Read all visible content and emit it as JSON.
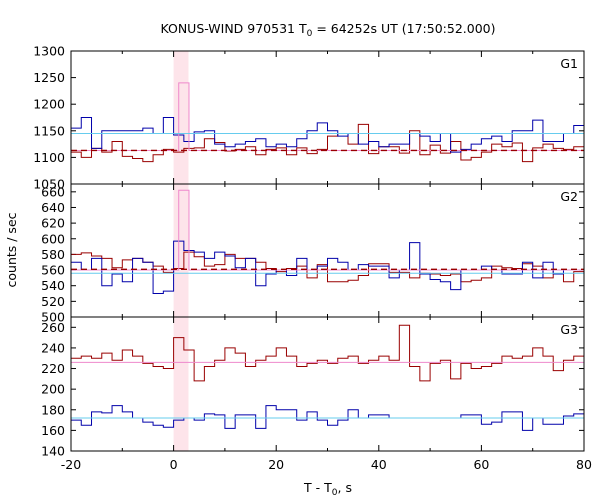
{
  "chart_data": {
    "type": "line",
    "title": {
      "main": "KONUS-WIND 970531 T",
      "sub": "0",
      "rest": " = 64252s UT (17:50:52.000)"
    },
    "xlabel": {
      "main": "T - T",
      "sub": "0",
      "rest": ", s"
    },
    "ylabel": "counts / sec",
    "xlim": [
      -20,
      80
    ],
    "xticks": [
      "-20",
      "0",
      "20",
      "40",
      "60",
      "80"
    ],
    "highlight": {
      "x0": 0,
      "x1": 2.9,
      "color": "#fde4ea"
    },
    "colors": {
      "red": "#990000",
      "blue": "#0000aa",
      "pink": "#ee88cc",
      "cyan": "#66ccee"
    },
    "panels": [
      {
        "name": "G1",
        "ylim": [
          1050,
          1300
        ],
        "yticks": [
          "1050",
          "1100",
          "1150",
          "1200",
          "1250",
          "1300"
        ],
        "series": [
          {
            "color": "red",
            "style": "step",
            "x": [
              -20,
              -18,
              -16,
              -14,
              -12,
              -10,
              -8,
              -6,
              -4,
              -2,
              0,
              2,
              4,
              6,
              8,
              10,
              12,
              14,
              16,
              18,
              20,
              22,
              24,
              26,
              28,
              30,
              32,
              34,
              36,
              38,
              40,
              42,
              44,
              46,
              48,
              50,
              52,
              54,
              56,
              58,
              60,
              62,
              64,
              66,
              68,
              70,
              72,
              74,
              76,
              78,
              80
            ],
            "y": [
              1110,
              1100,
              1117,
              1110,
              1130,
              1102,
              1098,
              1092,
              1105,
              1115,
              1110,
              1117,
              1118,
              1135,
              1128,
              1112,
              1115,
              1120,
              1105,
              1115,
              1118,
              1105,
              1118,
              1107,
              1115,
              1140,
              1145,
              1125,
              1162,
              1107,
              1120,
              1120,
              1108,
              1150,
              1105,
              1123,
              1108,
              1130,
              1095,
              1100,
              1110,
              1125,
              1120,
              1127,
              1092,
              1118,
              1125,
              1117,
              1115,
              1120,
              1110
            ]
          },
          {
            "color": "blue",
            "style": "step",
            "x": [
              -20,
              -18,
              -16,
              -14,
              -12,
              -10,
              -8,
              -6,
              -4,
              -2,
              0,
              2,
              4,
              6,
              8,
              10,
              12,
              14,
              16,
              18,
              20,
              22,
              24,
              26,
              28,
              30,
              32,
              34,
              36,
              38,
              40,
              42,
              44,
              46,
              48,
              50,
              52,
              54,
              56,
              58,
              60,
              62,
              64,
              66,
              68,
              70,
              72,
              74,
              76,
              78,
              80
            ],
            "y": [
              1155,
              1175,
              1117,
              1150,
              1150,
              1150,
              1150,
              1155,
              1145,
              1175,
              1142,
              1130,
              1148,
              1150,
              1125,
              1120,
              1125,
              1130,
              1135,
              1120,
              1125,
              1120,
              1135,
              1150,
              1165,
              1150,
              1140,
              1145,
              1125,
              1130,
              1120,
              1125,
              1125,
              1145,
              1140,
              1130,
              1145,
              1110,
              1115,
              1125,
              1135,
              1140,
              1130,
              1150,
              1150,
              1170,
              1130,
              1130,
              1145,
              1160,
              1145
            ]
          },
          {
            "color": "pink",
            "style": "step",
            "x": [
              -20,
              1,
              1,
              3,
              3,
              80
            ],
            "y": [
              1113,
              1113,
              1240,
              1240,
              1113,
              1113
            ]
          },
          {
            "color": "cyan",
            "style": "line",
            "x": [
              -20,
              80
            ],
            "y": [
              1145,
              1145
            ]
          },
          {
            "color": "red",
            "style": "dashed",
            "x": [
              -20,
              80
            ],
            "y": [
              1113,
              1113
            ]
          }
        ]
      },
      {
        "name": "G2",
        "ylim": [
          500,
          670
        ],
        "yticks": [
          "500",
          "520",
          "540",
          "560",
          "580",
          "600",
          "620",
          "640",
          "660"
        ],
        "series": [
          {
            "color": "red",
            "style": "step",
            "x": [
              -20,
              -18,
              -16,
              -14,
              -12,
              -10,
              -8,
              -6,
              -4,
              -2,
              0,
              2,
              4,
              6,
              8,
              10,
              12,
              14,
              16,
              18,
              20,
              22,
              24,
              26,
              28,
              30,
              32,
              34,
              36,
              38,
              40,
              42,
              44,
              46,
              48,
              50,
              52,
              54,
              56,
              58,
              60,
              62,
              64,
              66,
              68,
              70,
              72,
              74,
              76,
              78,
              80
            ],
            "y": [
              580,
              582,
              578,
              575,
              563,
              573,
              575,
              570,
              565,
              557,
              562,
              583,
              577,
              565,
              567,
              580,
              575,
              575,
              570,
              562,
              558,
              562,
              565,
              550,
              567,
              545,
              545,
              547,
              553,
              568,
              568,
              557,
              557,
              550,
              556,
              555,
              553,
              555,
              545,
              547,
              550,
              565,
              563,
              562,
              568,
              565,
              550,
              560,
              545,
              558,
              560
            ]
          },
          {
            "color": "blue",
            "style": "step",
            "x": [
              -20,
              -18,
              -16,
              -14,
              -12,
              -10,
              -8,
              -6,
              -4,
              -2,
              0,
              2,
              4,
              6,
              8,
              10,
              12,
              14,
              16,
              18,
              20,
              22,
              24,
              26,
              28,
              30,
              32,
              34,
              36,
              38,
              40,
              42,
              44,
              46,
              48,
              50,
              52,
              54,
              56,
              58,
              60,
              62,
              64,
              66,
              68,
              70,
              72,
              74,
              76,
              78,
              80
            ],
            "y": [
              570,
              560,
              575,
              540,
              555,
              545,
              575,
              570,
              530,
              533,
              597,
              585,
              583,
              575,
              583,
              578,
              563,
              575,
              540,
              555,
              560,
              553,
              575,
              560,
              565,
              575,
              570,
              560,
              567,
              565,
              565,
              550,
              560,
              595,
              555,
              548,
              545,
              535,
              560,
              560,
              565,
              560,
              555,
              555,
              570,
              550,
              570,
              555,
              560,
              560,
              570
            ]
          },
          {
            "color": "pink",
            "style": "step",
            "x": [
              -20,
              1,
              1,
              3,
              3,
              80
            ],
            "y": [
              560,
              560,
              662,
              662,
              560,
              560
            ]
          },
          {
            "color": "cyan",
            "style": "line",
            "x": [
              -20,
              80
            ],
            "y": [
              556,
              556
            ]
          },
          {
            "color": "red",
            "style": "dashed",
            "x": [
              -20,
              80
            ],
            "y": [
              561,
              561
            ]
          }
        ]
      },
      {
        "name": "G3",
        "ylim": [
          140,
          270
        ],
        "yticks": [
          "140",
          "160",
          "180",
          "200",
          "220",
          "240",
          "260"
        ],
        "series": [
          {
            "color": "red",
            "style": "step",
            "x": [
              -20,
              -18,
              -16,
              -14,
              -12,
              -10,
              -8,
              -6,
              -4,
              -2,
              0,
              2,
              4,
              6,
              8,
              10,
              12,
              14,
              16,
              18,
              20,
              22,
              24,
              26,
              28,
              30,
              32,
              34,
              36,
              38,
              40,
              42,
              44,
              46,
              48,
              50,
              52,
              54,
              56,
              58,
              60,
              62,
              64,
              66,
              68,
              70,
              72,
              74,
              76,
              78,
              80
            ],
            "y": [
              230,
              232,
              230,
              235,
              228,
              238,
              232,
              225,
              222,
              220,
              250,
              238,
              208,
              222,
              228,
              240,
              235,
              222,
              228,
              232,
              240,
              232,
              222,
              225,
              228,
              225,
              230,
              232,
              225,
              228,
              232,
              228,
              262,
              222,
              208,
              225,
              228,
              210,
              225,
              220,
              222,
              225,
              232,
              230,
              232,
              240,
              232,
              218,
              228,
              232,
              235
            ]
          },
          {
            "color": "blue",
            "style": "step",
            "x": [
              -20,
              -18,
              -16,
              -14,
              -12,
              -10,
              -8,
              -6,
              -4,
              -2,
              0,
              2,
              4,
              6,
              8,
              10,
              12,
              14,
              16,
              18,
              20,
              22,
              24,
              26,
              28,
              30,
              32,
              34,
              36,
              38,
              40,
              42,
              44,
              46,
              48,
              50,
              52,
              54,
              56,
              58,
              60,
              62,
              64,
              66,
              68,
              70,
              72,
              74,
              76,
              78,
              80
            ],
            "y": [
              170,
              165,
              178,
              177,
              184,
              178,
              172,
              168,
              165,
              163,
              170,
              172,
              170,
              176,
              175,
              162,
              175,
              175,
              162,
              184,
              180,
              180,
              170,
              178,
              170,
              165,
              170,
              180,
              172,
              175,
              175,
              172,
              172,
              172,
              172,
              172,
              172,
              172,
              175,
              175,
              166,
              168,
              178,
              178,
              160,
              172,
              166,
              166,
              174,
              176,
              174
            ]
          },
          {
            "color": "pink",
            "style": "line",
            "x": [
              -20,
              80
            ],
            "y": [
              226,
              226
            ]
          },
          {
            "color": "cyan",
            "style": "line",
            "x": [
              -20,
              80
            ],
            "y": [
              172,
              172
            ]
          }
        ]
      }
    ]
  }
}
